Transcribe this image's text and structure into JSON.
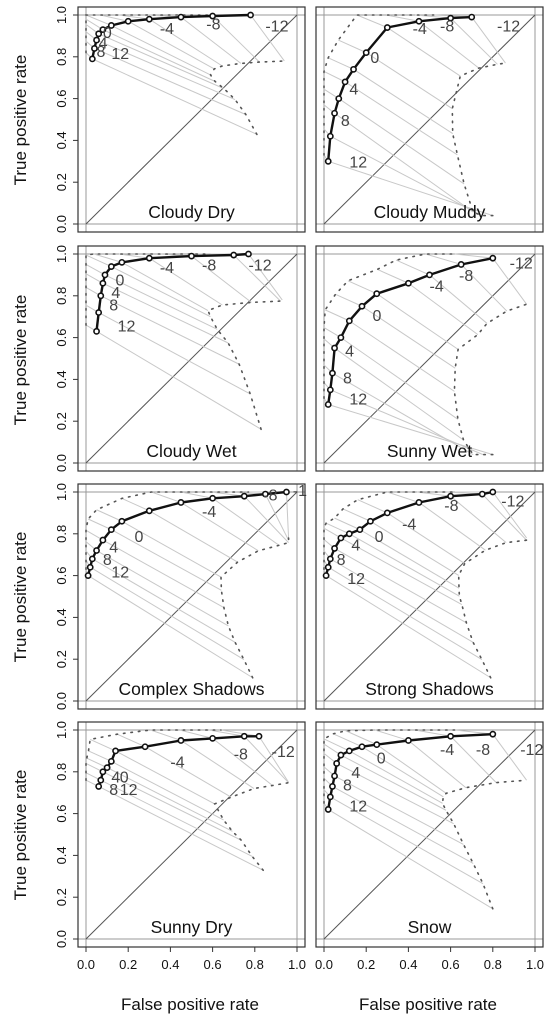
{
  "figure": {
    "ylabel": "True positive rate",
    "xlabel": "False positive rate",
    "xticks": [
      "0.0",
      "0.2",
      "0.4",
      "0.6",
      "0.8",
      "1.0"
    ],
    "yticks": [
      "0.0",
      "0.2",
      "0.4",
      "0.6",
      "0.8",
      "1.0"
    ]
  },
  "colors": {
    "curve": "#111111",
    "threshold_line": "#c8c8c8",
    "dotted": "#555555",
    "diagonal": "#555555",
    "frame": "#333333",
    "label": "#444444"
  },
  "chart_data": [
    {
      "type": "line",
      "title": "Cloudy Dry",
      "xlim": [
        0,
        1
      ],
      "ylim": [
        0,
        1
      ],
      "grid": false,
      "series": [
        {
          "x": [
            0.03,
            0.04,
            0.05,
            0.06,
            0.08,
            0.12,
            0.2,
            0.3,
            0.45,
            0.6,
            0.78
          ],
          "y": [
            0.79,
            0.84,
            0.88,
            0.91,
            0.93,
            0.95,
            0.97,
            0.98,
            0.99,
            0.995,
            1.0
          ]
        }
      ],
      "labels": [
        {
          "text": "0",
          "x": 0.08,
          "y": 0.89
        },
        {
          "text": "4",
          "x": 0.06,
          "y": 0.84
        },
        {
          "text": "8",
          "x": 0.05,
          "y": 0.8
        },
        {
          "text": "12",
          "x": 0.12,
          "y": 0.79
        },
        {
          "text": "-4",
          "x": 0.35,
          "y": 0.91
        },
        {
          "text": "-8",
          "x": 0.57,
          "y": 0.93
        },
        {
          "text": "-12",
          "x": 0.85,
          "y": 0.92
        }
      ]
    },
    {
      "type": "line",
      "title": "Cloudy Muddy",
      "xlim": [
        0,
        1
      ],
      "ylim": [
        0,
        1
      ],
      "grid": false,
      "series": [
        {
          "x": [
            0.02,
            0.03,
            0.05,
            0.07,
            0.1,
            0.14,
            0.2,
            0.3,
            0.45,
            0.6,
            0.7
          ],
          "y": [
            0.3,
            0.42,
            0.53,
            0.6,
            0.68,
            0.74,
            0.82,
            0.94,
            0.97,
            0.985,
            0.99
          ]
        }
      ],
      "labels": [
        {
          "text": "0",
          "x": 0.22,
          "y": 0.77
        },
        {
          "text": "4",
          "x": 0.12,
          "y": 0.62
        },
        {
          "text": "8",
          "x": 0.08,
          "y": 0.47
        },
        {
          "text": "12",
          "x": 0.12,
          "y": 0.27
        },
        {
          "text": "-4",
          "x": 0.42,
          "y": 0.91
        },
        {
          "text": "-8",
          "x": 0.55,
          "y": 0.92
        },
        {
          "text": "-12",
          "x": 0.82,
          "y": 0.92
        }
      ]
    },
    {
      "type": "line",
      "title": "Cloudy Wet",
      "xlim": [
        0,
        1
      ],
      "ylim": [
        0,
        1
      ],
      "grid": false,
      "series": [
        {
          "x": [
            0.05,
            0.06,
            0.07,
            0.08,
            0.09,
            0.12,
            0.17,
            0.3,
            0.5,
            0.7,
            0.77
          ],
          "y": [
            0.63,
            0.72,
            0.8,
            0.86,
            0.9,
            0.94,
            0.96,
            0.98,
            0.99,
            0.995,
            1.0
          ]
        }
      ],
      "labels": [
        {
          "text": "0",
          "x": 0.14,
          "y": 0.85
        },
        {
          "text": "4",
          "x": 0.12,
          "y": 0.79
        },
        {
          "text": "8",
          "x": 0.11,
          "y": 0.73
        },
        {
          "text": "12",
          "x": 0.15,
          "y": 0.63
        },
        {
          "text": "-4",
          "x": 0.35,
          "y": 0.91
        },
        {
          "text": "-8",
          "x": 0.55,
          "y": 0.92
        },
        {
          "text": "-12",
          "x": 0.77,
          "y": 0.92
        }
      ]
    },
    {
      "type": "line",
      "title": "Sunny Wet",
      "xlim": [
        0,
        1
      ],
      "ylim": [
        0,
        1
      ],
      "grid": false,
      "series": [
        {
          "x": [
            0.02,
            0.03,
            0.04,
            0.05,
            0.08,
            0.12,
            0.18,
            0.25,
            0.4,
            0.5,
            0.65,
            0.8
          ],
          "y": [
            0.28,
            0.35,
            0.43,
            0.55,
            0.6,
            0.68,
            0.75,
            0.81,
            0.86,
            0.9,
            0.95,
            0.98
          ]
        }
      ],
      "labels": [
        {
          "text": "0",
          "x": 0.23,
          "y": 0.68
        },
        {
          "text": "4",
          "x": 0.1,
          "y": 0.51
        },
        {
          "text": "8",
          "x": 0.09,
          "y": 0.38
        },
        {
          "text": "12",
          "x": 0.12,
          "y": 0.28
        },
        {
          "text": "-4",
          "x": 0.5,
          "y": 0.82
        },
        {
          "text": "-8",
          "x": 0.64,
          "y": 0.87
        },
        {
          "text": "-12",
          "x": 0.88,
          "y": 0.93
        }
      ]
    },
    {
      "type": "line",
      "title": "Complex Shadows",
      "xlim": [
        0,
        1
      ],
      "ylim": [
        0,
        1
      ],
      "grid": false,
      "series": [
        {
          "x": [
            0.01,
            0.02,
            0.03,
            0.05,
            0.08,
            0.12,
            0.17,
            0.3,
            0.45,
            0.6,
            0.75,
            0.85,
            0.95
          ],
          "y": [
            0.6,
            0.64,
            0.68,
            0.72,
            0.77,
            0.82,
            0.86,
            0.91,
            0.95,
            0.97,
            0.98,
            0.99,
            1.0
          ]
        }
      ],
      "labels": [
        {
          "text": "0",
          "x": 0.23,
          "y": 0.76
        },
        {
          "text": "4",
          "x": 0.11,
          "y": 0.71
        },
        {
          "text": "8",
          "x": 0.08,
          "y": 0.65
        },
        {
          "text": "12",
          "x": 0.12,
          "y": 0.59
        },
        {
          "text": "-4",
          "x": 0.55,
          "y": 0.88
        },
        {
          "text": "-8",
          "x": 0.84,
          "y": 0.96
        },
        {
          "text": "-1",
          "x": 0.98,
          "y": 0.98
        }
      ]
    },
    {
      "type": "line",
      "title": "Strong Shadows",
      "xlim": [
        0,
        1
      ],
      "ylim": [
        0,
        1
      ],
      "grid": false,
      "series": [
        {
          "x": [
            0.01,
            0.02,
            0.03,
            0.05,
            0.08,
            0.12,
            0.17,
            0.22,
            0.3,
            0.45,
            0.6,
            0.75,
            0.8
          ],
          "y": [
            0.6,
            0.64,
            0.68,
            0.73,
            0.78,
            0.8,
            0.82,
            0.86,
            0.9,
            0.95,
            0.98,
            0.99,
            1.0
          ]
        }
      ],
      "labels": [
        {
          "text": "0",
          "x": 0.24,
          "y": 0.76
        },
        {
          "text": "4",
          "x": 0.13,
          "y": 0.72
        },
        {
          "text": "8",
          "x": 0.06,
          "y": 0.65
        },
        {
          "text": "12",
          "x": 0.11,
          "y": 0.56
        },
        {
          "text": "-4",
          "x": 0.37,
          "y": 0.82
        },
        {
          "text": "-8",
          "x": 0.57,
          "y": 0.91
        },
        {
          "text": "-12",
          "x": 0.84,
          "y": 0.93
        }
      ]
    },
    {
      "type": "line",
      "title": "Sunny Dry",
      "xlim": [
        0,
        1
      ],
      "ylim": [
        0,
        1
      ],
      "grid": false,
      "series": [
        {
          "x": [
            0.06,
            0.07,
            0.08,
            0.1,
            0.12,
            0.14,
            0.28,
            0.45,
            0.6,
            0.75,
            0.82
          ],
          "y": [
            0.73,
            0.76,
            0.8,
            0.82,
            0.85,
            0.9,
            0.92,
            0.95,
            0.96,
            0.97,
            0.97
          ]
        }
      ],
      "labels": [
        {
          "text": "0",
          "x": 0.16,
          "y": 0.75
        },
        {
          "text": "4",
          "x": 0.12,
          "y": 0.75
        },
        {
          "text": "8",
          "x": 0.11,
          "y": 0.69
        },
        {
          "text": "12",
          "x": 0.16,
          "y": 0.69
        },
        {
          "text": "-4",
          "x": 0.4,
          "y": 0.82
        },
        {
          "text": "-8",
          "x": 0.7,
          "y": 0.86
        },
        {
          "text": "-12",
          "x": 0.88,
          "y": 0.87
        }
      ]
    },
    {
      "type": "line",
      "title": "Snow",
      "xlim": [
        0,
        1
      ],
      "ylim": [
        0,
        1
      ],
      "grid": false,
      "series": [
        {
          "x": [
            0.02,
            0.03,
            0.04,
            0.05,
            0.06,
            0.08,
            0.12,
            0.18,
            0.25,
            0.4,
            0.6,
            0.8
          ],
          "y": [
            0.62,
            0.68,
            0.73,
            0.78,
            0.84,
            0.88,
            0.9,
            0.92,
            0.93,
            0.95,
            0.97,
            0.98
          ]
        }
      ],
      "labels": [
        {
          "text": "0",
          "x": 0.25,
          "y": 0.84
        },
        {
          "text": "4",
          "x": 0.13,
          "y": 0.77
        },
        {
          "text": "8",
          "x": 0.09,
          "y": 0.71
        },
        {
          "text": "12",
          "x": 0.12,
          "y": 0.61
        },
        {
          "text": "-4",
          "x": 0.55,
          "y": 0.88
        },
        {
          "text": "-8",
          "x": 0.72,
          "y": 0.88
        },
        {
          "text": "-12",
          "x": 0.93,
          "y": 0.88
        }
      ]
    }
  ]
}
